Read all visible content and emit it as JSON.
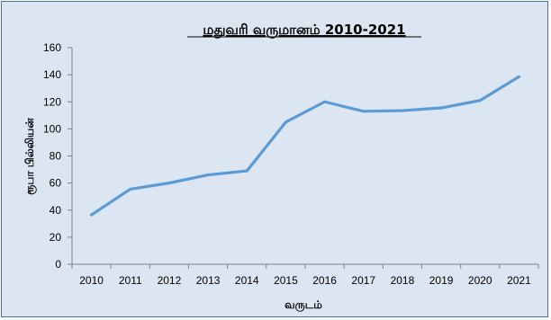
{
  "chart_data": {
    "type": "line",
    "title": "மதுவரி வருமானம்  2010-2021",
    "xlabel": "வருடம்",
    "ylabel": "ரூபா பில்லியன்",
    "categories": [
      "2010",
      "2011",
      "2012",
      "2013",
      "2014",
      "2015",
      "2016",
      "2017",
      "2018",
      "2019",
      "2020",
      "2021"
    ],
    "series": [
      {
        "values": [
          36.5,
          55.5,
          60.0,
          66.0,
          69.0,
          105.0,
          120.0,
          113.0,
          113.5,
          115.5,
          121.0,
          138.5
        ]
      }
    ],
    "ylim": [
      0,
      160
    ],
    "yticks": [
      0,
      20,
      40,
      60,
      80,
      100,
      120,
      140,
      160
    ],
    "grid": false,
    "legend": "none",
    "colors": {
      "line": "#5b9bd5",
      "background": "#dce6f2",
      "border": "#4a6fa5"
    }
  }
}
